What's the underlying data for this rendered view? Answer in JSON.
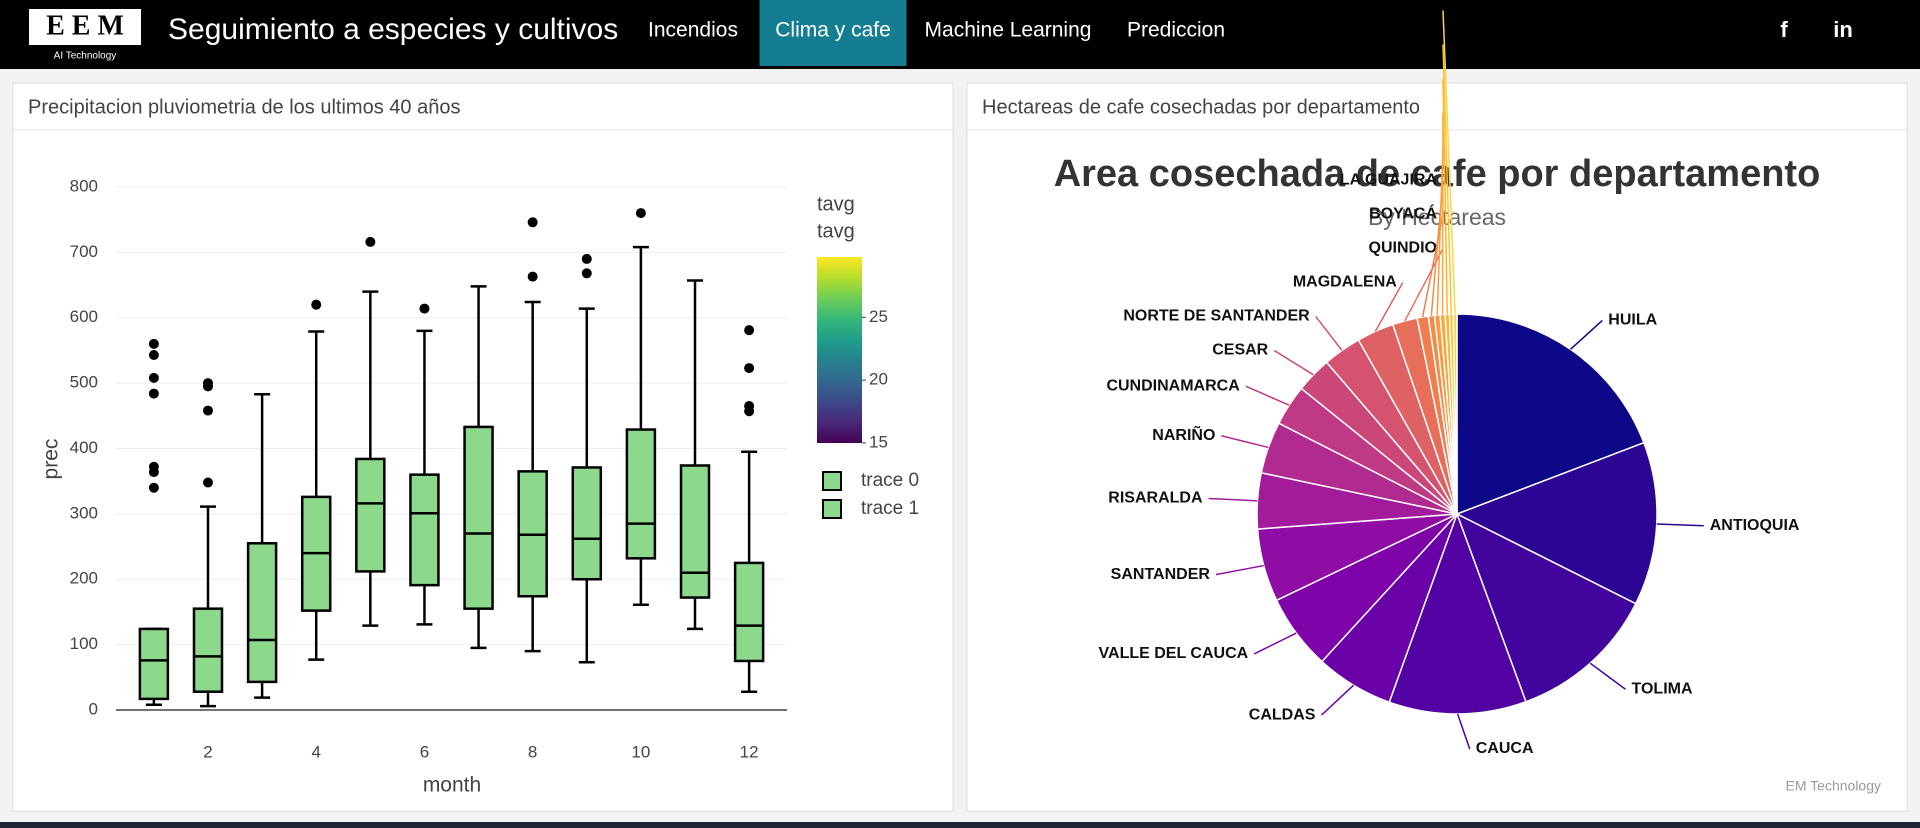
{
  "nav": {
    "logo": "E E M",
    "logo_sub": "AI Technology",
    "title": "Seguimiento a especies y cultivos",
    "menu": [
      "Incendios",
      "Clima y cafe",
      "Machine Learning",
      "Prediccion"
    ],
    "active": 1,
    "active_color": "#157d91",
    "social": [
      "f",
      "in"
    ]
  },
  "panels": [
    "Precipitacion pluviometria de los ultimos 40 años",
    "Hectareas de cafe cosechadas por departamento"
  ],
  "credit": "EM Technology",
  "chart_data": [
    {
      "type": "box",
      "x_label": "month",
      "y_label": "prec",
      "xlim": [
        0.3,
        12.7
      ],
      "xticks": [
        2,
        4,
        6,
        8,
        10,
        12
      ],
      "ylim": [
        0,
        800
      ],
      "yticks": [
        0,
        100,
        200,
        300,
        400,
        500,
        600,
        700,
        800
      ],
      "grid": true,
      "color": "#8cd98c",
      "boxes": [
        {
          "x": 1,
          "low": 8,
          "q1": 17,
          "median": 76,
          "q3": 124,
          "high": 124,
          "outliers": [
            340,
            364,
            372,
            484,
            508,
            543,
            560
          ]
        },
        {
          "x": 2,
          "low": 6,
          "q1": 28,
          "median": 82,
          "q3": 155,
          "high": 311,
          "outliers": [
            348,
            458,
            495,
            500
          ]
        },
        {
          "x": 3,
          "low": 19,
          "q1": 43,
          "median": 107,
          "q3": 255,
          "high": 483,
          "outliers": []
        },
        {
          "x": 4,
          "low": 77,
          "q1": 152,
          "median": 240,
          "q3": 326,
          "high": 579,
          "outliers": [
            620
          ]
        },
        {
          "x": 5,
          "low": 129,
          "q1": 212,
          "median": 316,
          "q3": 384,
          "high": 640,
          "outliers": [
            716
          ]
        },
        {
          "x": 6,
          "low": 131,
          "q1": 191,
          "median": 301,
          "q3": 360,
          "high": 580,
          "outliers": [
            614
          ]
        },
        {
          "x": 7,
          "low": 95,
          "q1": 155,
          "median": 270,
          "q3": 433,
          "high": 648,
          "outliers": []
        },
        {
          "x": 8,
          "low": 90,
          "q1": 174,
          "median": 268,
          "q3": 365,
          "high": 624,
          "outliers": [
            663,
            746
          ]
        },
        {
          "x": 9,
          "low": 73,
          "q1": 200,
          "median": 262,
          "q3": 371,
          "high": 614,
          "outliers": [
            668,
            690
          ]
        },
        {
          "x": 10,
          "low": 161,
          "q1": 232,
          "median": 285,
          "q3": 429,
          "high": 708,
          "outliers": [
            760
          ]
        },
        {
          "x": 11,
          "low": 124,
          "q1": 172,
          "median": 210,
          "q3": 374,
          "high": 657,
          "outliers": []
        },
        {
          "x": 12,
          "low": 28,
          "q1": 75,
          "median": 129,
          "q3": 225,
          "high": 395,
          "outliers": [
            457,
            465,
            523,
            581
          ]
        }
      ],
      "legend": {
        "title": "tavg",
        "items": [
          "trace 0",
          "trace 1"
        ]
      },
      "colorbar": {
        "title": "tavg",
        "range": [
          15,
          29.8
        ],
        "ticks": [
          15,
          20,
          25
        ],
        "colorscale": [
          "#440154",
          "#482878",
          "#3e4989",
          "#31688e",
          "#26828e",
          "#1f9e89",
          "#35b779",
          "#6ece58",
          "#b5de2b",
          "#fde725"
        ]
      }
    },
    {
      "type": "pie",
      "title": "Area cosechada de cafe por departamento",
      "subtitle": "By Hectareas",
      "categories": [
        "HUILA",
        "ANTIOQUIA",
        "TOLIMA",
        "CAUCA",
        "CALDAS",
        "VALLE DEL CAUCA",
        "SANTANDER",
        "RISARALDA",
        "NARIÑO",
        "CUNDINAMARCA",
        "CESAR",
        "NORTE DE SANTANDER",
        "MAGDALENA",
        "QUINDIO",
        "BOYACÁ",
        "LA GUAJIRA",
        null,
        null,
        null,
        null,
        null
      ],
      "values": [
        19.2,
        13.2,
        12.0,
        11.1,
        6.3,
        6.1,
        5.9,
        4.5,
        4.2,
        3.3,
        2.9,
        3.1,
        3.0,
        2.0,
        0.9,
        0.5,
        0.45,
        0.4,
        0.35,
        0.3,
        0.3
      ],
      "colors": [
        "#0d0887",
        "#2c0594",
        "#41049d",
        "#5302a3",
        "#6a00a8",
        "#7e03a8",
        "#8f0da4",
        "#a11b9b",
        "#b12a90",
        "#bf3984",
        "#cb4679",
        "#d5536f",
        "#de6164",
        "#e76f5a",
        "#ef7e50",
        "#f58c46",
        "#f99a3e",
        "#fca636",
        "#fdb42f",
        "#fcc229",
        "#f6d746"
      ]
    }
  ]
}
